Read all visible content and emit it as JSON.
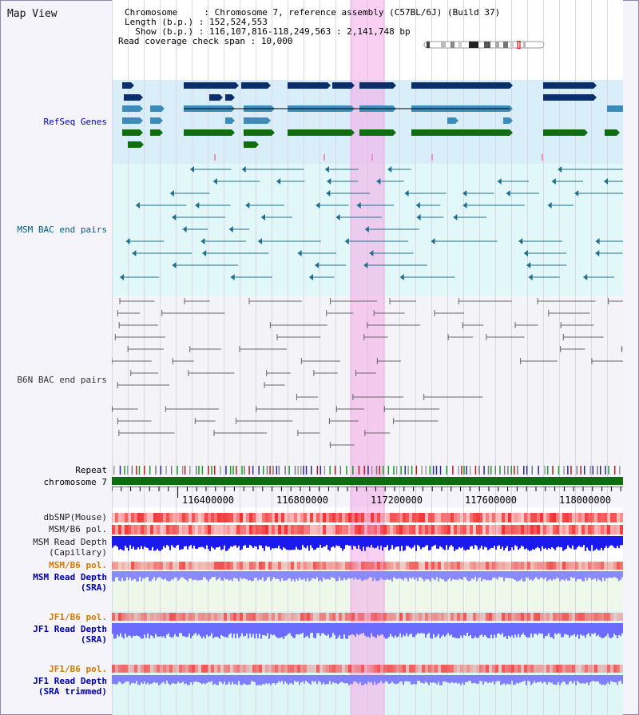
{
  "header": {
    "title": "Map View",
    "rows": [
      {
        "label": "Chromosome     : ",
        "value": "Chromosome 7, reference assembly (C57BL/6J) (Build 37)"
      },
      {
        "label": "Length (b.p.) : ",
        "value": "152,524,553"
      },
      {
        "label": "  Show (b.p.) : ",
        "value": "116,107,816-118,249,563 : 2,141,748 bp"
      },
      {
        "label": "Read coverage check span : ",
        "value": "10,000"
      }
    ]
  },
  "tracks": {
    "refseq": "RefSeq Genes",
    "msm_bac": "MSM BAC end pairs",
    "b6n_bac": "B6N BAC end pairs",
    "repeat": "Repeat",
    "chromosome": "chromosome 7",
    "dbsnp": "dbSNP(Mouse)",
    "msm_b6_pol": "MSM/B6 pol.",
    "msm_depth_cap": "MSM Read Depth",
    "msm_depth_cap2": "(Capillary)",
    "msm_b6_pol_sra": "MSM/B6 pol.",
    "msm_depth_sra": "MSM Read Depth",
    "msm_depth_sra2": "(SRA)",
    "jf1_b6_pol": "JF1/B6 pol.",
    "jf1_depth": "JF1 Read Depth",
    "jf1_depth2": "(SRA)",
    "jf1_b6_pol_trim": "JF1/B6 pol.",
    "jf1_depth_trim": "JF1 Read Depth",
    "jf1_depth_trim2": "(SRA trimmed)"
  },
  "axis": {
    "ticks": [
      "116400000",
      "116800000",
      "117200000",
      "117600000",
      "118000000"
    ]
  },
  "colors": {
    "refseq_dark": "#0a2f6b",
    "refseq_mid": "#3d8bb8",
    "refseq_green": "#0f6e0f",
    "refseq_bg": "#d8eef8",
    "msm_line": "#1f6e8c",
    "b6n_line": "#666666",
    "chrom": "#0d6e0d",
    "highlight": "#f4aae8",
    "depth_blue": "#1a1aee",
    "depth_light": "#8a8aff"
  }
}
